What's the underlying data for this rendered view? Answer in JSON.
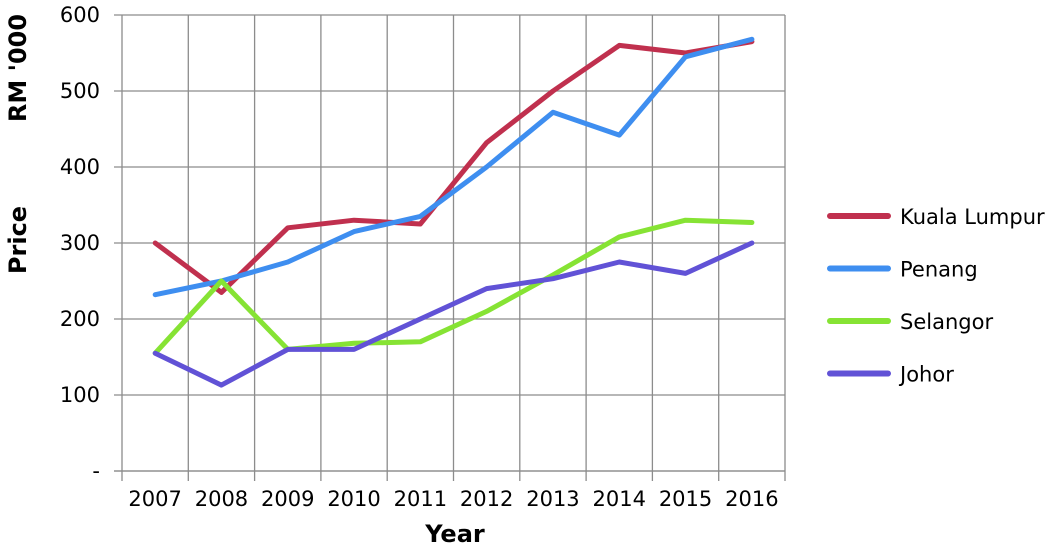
{
  "chart_data": {
    "type": "line",
    "x": [
      "2007",
      "2008",
      "2009",
      "2010",
      "2011",
      "2012",
      "2013",
      "2014",
      "2015",
      "2016"
    ],
    "xlabel": "Year",
    "ylabel": "Price",
    "ylabel_unit": "RM '000",
    "ylim": [
      0,
      600
    ],
    "yticks": [
      "-",
      "100",
      "200",
      "300",
      "400",
      "500",
      "600"
    ],
    "grid": true,
    "legend_position": "right",
    "series": [
      {
        "name": "Kuala Lumpur",
        "color": "#c0304e",
        "values": [
          300,
          235,
          320,
          330,
          325,
          432,
          500,
          560,
          550,
          565
        ]
      },
      {
        "name": "Penang",
        "color": "#3e8ef0",
        "values": [
          232,
          250,
          275,
          315,
          335,
          400,
          472,
          442,
          545,
          568
        ]
      },
      {
        "name": "Selangor",
        "color": "#86e334",
        "values": [
          155,
          250,
          160,
          168,
          170,
          210,
          258,
          308,
          330,
          327
        ]
      },
      {
        "name": "Johor",
        "color": "#6152d6",
        "values": [
          155,
          113,
          160,
          160,
          200,
          240,
          253,
          275,
          260,
          300
        ]
      }
    ]
  }
}
